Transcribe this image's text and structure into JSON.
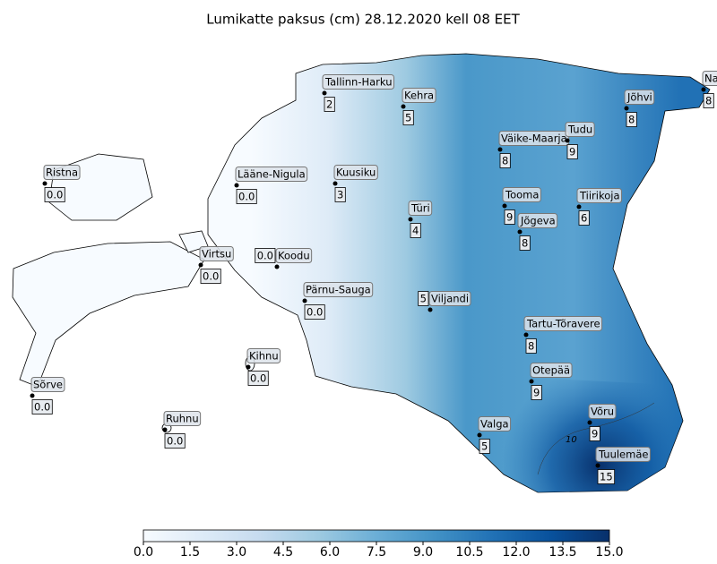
{
  "title": "Lumikatte paksus (cm) 28.12.2020 kell 08 EET",
  "stations": [
    {
      "name": "Tallinn-Harku",
      "value": 2
    },
    {
      "name": "Kehra",
      "value": 5
    },
    {
      "name": "Narva",
      "value": 8
    },
    {
      "name": "Jõhvi",
      "value": 8
    },
    {
      "name": "Väike-Maarja",
      "value": 8
    },
    {
      "name": "Tudu",
      "value": 9
    },
    {
      "name": "Ristna",
      "value": 0,
      "value_label": "0.0"
    },
    {
      "name": "Lääne-Nigula",
      "value": 0,
      "value_label": "0.0"
    },
    {
      "name": "Kuusiku",
      "value": 3
    },
    {
      "name": "Tooma",
      "value": 9
    },
    {
      "name": "Tiirikoja",
      "value": 6
    },
    {
      "name": "Türi",
      "value": 4
    },
    {
      "name": "Jõgeva",
      "value": 8
    },
    {
      "name": "Virtsu",
      "value": 0,
      "value_label": "0.0"
    },
    {
      "name": "Koodu",
      "value": 0,
      "value_label": "0.0"
    },
    {
      "name": "Pärnu-Sauga",
      "value": 0,
      "value_label": "0.0"
    },
    {
      "name": "Viljandi",
      "value": 5
    },
    {
      "name": "Tartu-Tõravere",
      "value": 8
    },
    {
      "name": "Kihnu",
      "value": 0,
      "value_label": "0.0"
    },
    {
      "name": "Otepää",
      "value": 9
    },
    {
      "name": "Sõrve",
      "value": 0,
      "value_label": "0.0"
    },
    {
      "name": "Võru",
      "value": 9
    },
    {
      "name": "Valga",
      "value": 5
    },
    {
      "name": "Ruhnu",
      "value": 0,
      "value_label": "0.0"
    },
    {
      "name": "Tuulemäe",
      "value": 15
    }
  ],
  "contour": {
    "value": 10
  },
  "colorbar": {
    "lim": [
      0,
      15
    ],
    "ticks": [
      {
        "value": 0,
        "label": "0.0"
      },
      {
        "value": 1.5,
        "label": "1.5"
      },
      {
        "value": 3,
        "label": "3.0"
      },
      {
        "value": 4.5,
        "label": "4.5"
      },
      {
        "value": 6,
        "label": "6.0"
      },
      {
        "value": 7.5,
        "label": "7.5"
      },
      {
        "value": 9,
        "label": "9.0"
      },
      {
        "value": 10.5,
        "label": "10.5"
      },
      {
        "value": 12,
        "label": "12.0"
      },
      {
        "value": 13.5,
        "label": "13.5"
      },
      {
        "value": 15,
        "label": "15.0"
      }
    ],
    "colors": [
      "#f7fbff",
      "#deebf7",
      "#c6dbef",
      "#9ecae1",
      "#6baed6",
      "#4292c6",
      "#2171b5",
      "#08519c",
      "#08306b"
    ]
  }
}
